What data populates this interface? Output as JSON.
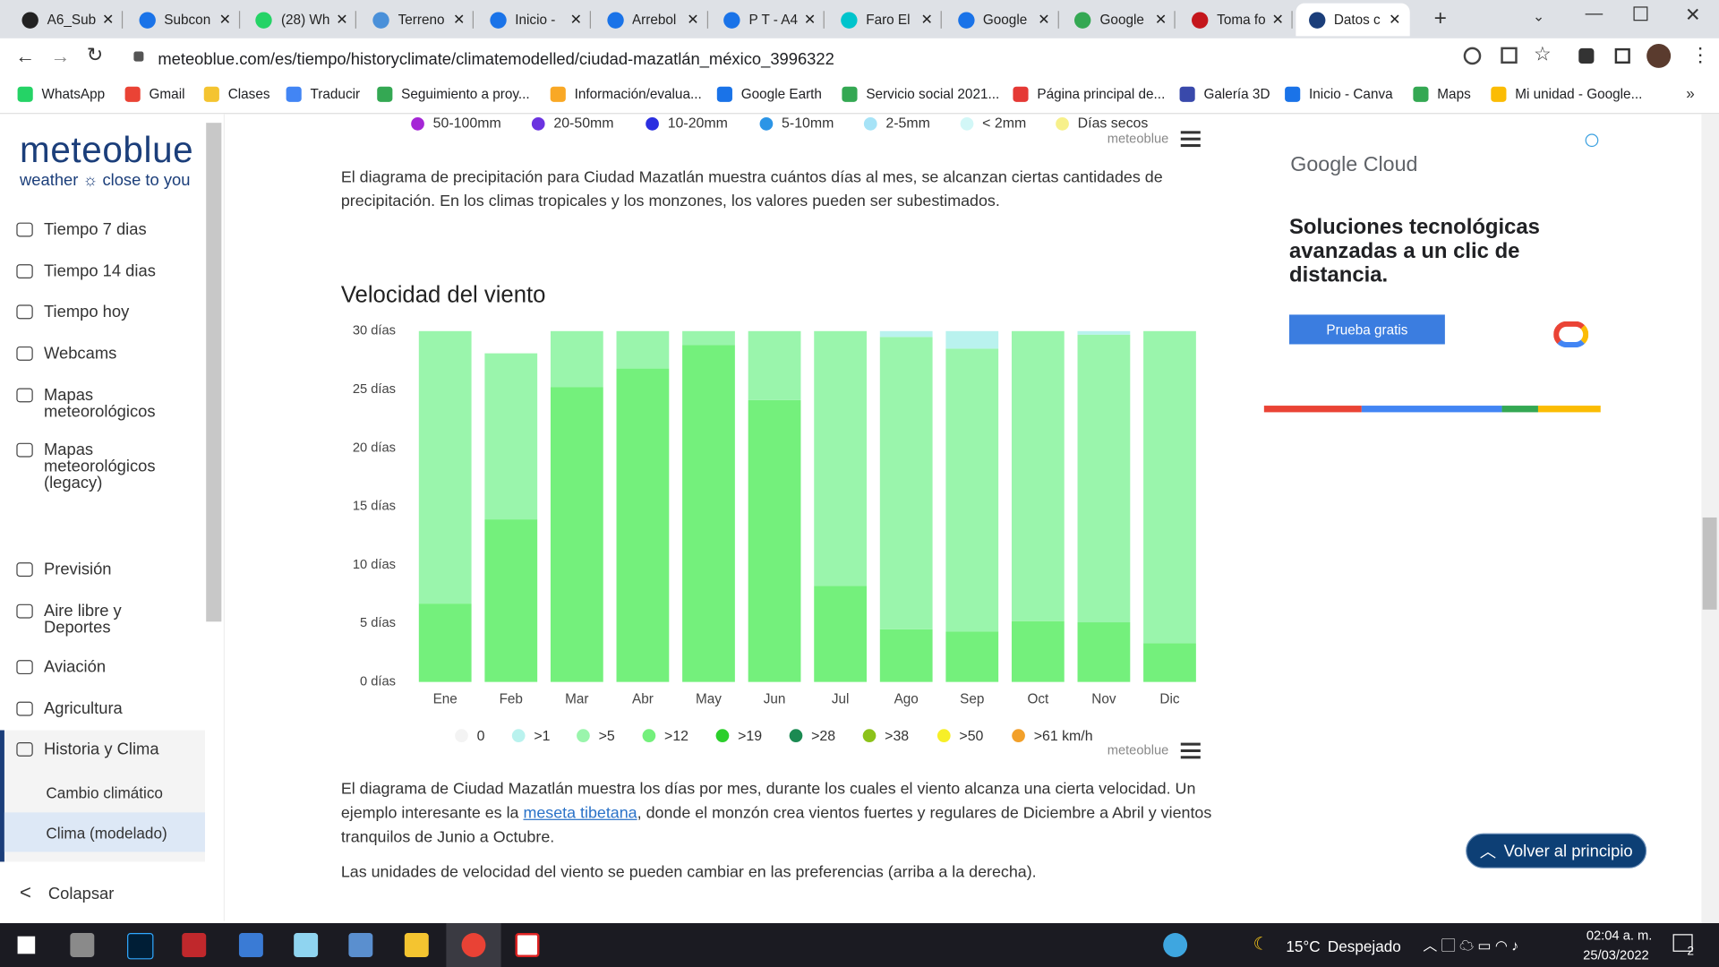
{
  "tabs": [
    "A6_Sub",
    "Subcon",
    "(28) Wh",
    "Terreno",
    "Inicio -",
    "Arrebol",
    "P T - A4",
    "Faro El",
    "Google",
    "Google",
    "Toma fo",
    "Datos c"
  ],
  "url": "meteoblue.com/es/tiempo/historyclimate/climatemodelled/ciudad-mazatlán_méxico_3996322",
  "bookmarks": [
    "WhatsApp",
    "Gmail",
    "Clases",
    "Traducir",
    "Seguimiento a proy...",
    "Información/evalua...",
    "Google Earth",
    "Servicio social 2021...",
    "Página principal de...",
    "Galería 3D",
    "Inicio - Canva",
    "Maps",
    "Mi unidad - Google..."
  ],
  "sidebar": {
    "logo": "meteoblue",
    "tagline_left": "weather",
    "tagline_right": "close to you",
    "items": [
      "Tiempo 7 dias",
      "Tiempo 14 dias",
      "Tiempo hoy",
      "Webcams",
      "Mapas meteorológicos",
      "Mapas meteorológicos (legacy)",
      "Previsión",
      "Aire libre y Deportes",
      "Aviación",
      "Agricultura",
      "Historia y Clima"
    ],
    "subitems": [
      "Cambio climático",
      "Clima (modelado)"
    ],
    "collapse": "Colapsar"
  },
  "precip_legend": [
    {
      "label": "50-100mm",
      "color": "#a526d6"
    },
    {
      "label": "20-50mm",
      "color": "#6b33e0"
    },
    {
      "label": "10-20mm",
      "color": "#2b2fe0"
    },
    {
      "label": "5-10mm",
      "color": "#2c95e6"
    },
    {
      "label": "2-5mm",
      "color": "#a6e3f7"
    },
    {
      "label": "< 2mm",
      "color": "#d2f7f7"
    },
    {
      "label": "Días secos",
      "color": "#f7f08a"
    }
  ],
  "credit": "meteoblue",
  "paragraph1": "El diagrama de precipitación para Ciudad Mazatlán muestra cuántos días al mes, se alcanzan ciertas cantidades de precipitación. En los climas tropicales y los monzones, los valores pueden ser subestimados.",
  "chart_data": {
    "type": "stacked_bar",
    "title": "Velocidad del viento",
    "categories": [
      "Ene",
      "Feb",
      "Mar",
      "Abr",
      "May",
      "Jun",
      "Jul",
      "Ago",
      "Sep",
      "Oct",
      "Nov",
      "Dic"
    ],
    "ylim": [
      0,
      30
    ],
    "yticks": [
      {
        "value": 0,
        "label": "0 días"
      },
      {
        "value": 5,
        "label": "5 días"
      },
      {
        "value": 10,
        "label": "10 días"
      },
      {
        "value": 15,
        "label": "15 días"
      },
      {
        "value": 20,
        "label": "20 días"
      },
      {
        "value": 25,
        "label": "25 días"
      },
      {
        "value": 30,
        "label": "30 días"
      }
    ],
    "series": [
      {
        "name": "0",
        "color": "#f3f3f3",
        "values": [
          0,
          0,
          0,
          0,
          0,
          0,
          0,
          0,
          0,
          0,
          0,
          0
        ]
      },
      {
        "name": ">1",
        "color": "#b9f2ee",
        "values": [
          0,
          0,
          0,
          0,
          0,
          0,
          0,
          0.5,
          1.5,
          0,
          0.3,
          0
        ]
      },
      {
        "name": ">5",
        "color": "#9af5ac",
        "values": [
          23.3,
          14.2,
          4.8,
          3.2,
          1.2,
          5.9,
          21.8,
          25.0,
          24.2,
          24.8,
          24.6,
          26.7
        ]
      },
      {
        "name": ">12",
        "color": "#74f07c",
        "values": [
          6.7,
          13.9,
          25.2,
          26.8,
          28.8,
          24.1,
          8.2,
          4.5,
          4.3,
          5.2,
          5.1,
          3.3
        ]
      },
      {
        "name": ">19",
        "color": "#2ccf2c",
        "values": [
          0,
          0,
          0,
          0,
          0,
          0,
          0,
          0,
          0,
          0,
          0,
          0
        ]
      },
      {
        "name": ">28",
        "color": "#1b8a52",
        "values": [
          0,
          0,
          0,
          0,
          0,
          0,
          0,
          0,
          0,
          0,
          0,
          0
        ]
      },
      {
        "name": ">38",
        "color": "#8cc21a",
        "values": [
          0,
          0,
          0,
          0,
          0,
          0,
          0,
          0,
          0,
          0,
          0,
          0
        ]
      },
      {
        "name": ">50",
        "color": "#f7ef28",
        "values": [
          0,
          0,
          0,
          0,
          0,
          0,
          0,
          0,
          0,
          0,
          0,
          0
        ]
      },
      {
        "name": ">61 km/h",
        "color": "#f2a02a",
        "values": [
          0,
          0,
          0,
          0,
          0,
          0,
          0,
          0,
          0,
          0,
          0,
          0
        ]
      }
    ]
  },
  "paragraph2": {
    "before": "El diagrama de Ciudad Mazatlán muestra los días por mes, durante los cuales el viento alcanza una cierta velocidad. Un ejemplo interesante es la ",
    "link": "meseta tibetana",
    "after": ", donde el monzón crea vientos fuertes y regulares de Diciembre a Abril y vientos tranquilos de Junio a Octubre."
  },
  "paragraph3": "Las unidades de velocidad del viento se pueden cambiar en las preferencias (arriba a la derecha).",
  "ad": {
    "brand": "Google Cloud",
    "headline": "Soluciones tecnológicas avanzadas a un clic de distancia.",
    "button": "Prueba gratis"
  },
  "back_to_top": "Volver al principio",
  "taskbar": {
    "weather_temp": "15°C",
    "weather_text": "Despejado",
    "time": "02:04 a. m.",
    "date": "25/03/2022",
    "notifications": "2"
  }
}
